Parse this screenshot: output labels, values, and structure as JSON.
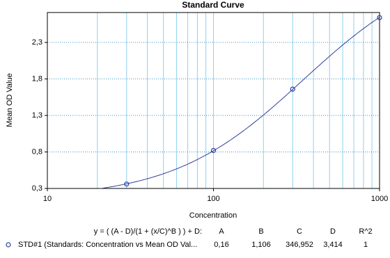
{
  "chart_data": {
    "type": "scatter",
    "title": "Standard Curve",
    "x_label": "Concentration",
    "y_label": "Mean OD Value",
    "x": [
      30,
      100,
      300,
      1000
    ],
    "series": [
      {
        "name": "STD#1 (Standards: Concentration vs Mean OD Val...",
        "color": "#2e3f9e",
        "values": [
          0.36,
          0.82,
          1.66,
          2.64
        ]
      }
    ],
    "xscale": "log",
    "xlim": [
      10,
      1000
    ],
    "xticks": [
      10,
      100,
      1000
    ],
    "xminorticks": [
      20,
      30,
      40,
      50,
      60,
      70,
      80,
      90,
      200,
      300,
      400,
      500,
      600,
      700,
      800,
      900
    ],
    "ylim": [
      0.3,
      2.71
    ],
    "yticks": [
      {
        "value": 0.3,
        "label": "0,3"
      },
      {
        "value": 0.8,
        "label": "0,8"
      },
      {
        "value": 1.3,
        "label": "1,3"
      },
      {
        "value": 1.8,
        "label": "1,8"
      },
      {
        "value": 2.3,
        "label": "2,3"
      }
    ],
    "grid": true,
    "fit": {
      "equation": "y = ( (A - D)/(1 + (x/C)^B ) ) + D:",
      "names": [
        "A",
        "B",
        "C",
        "D",
        "R^2"
      ],
      "values": [
        0.16,
        1.106,
        346.952,
        3.414,
        1
      ],
      "value_labels": [
        "0,16",
        "1,106",
        "346,952",
        "3,414",
        "1"
      ]
    }
  }
}
